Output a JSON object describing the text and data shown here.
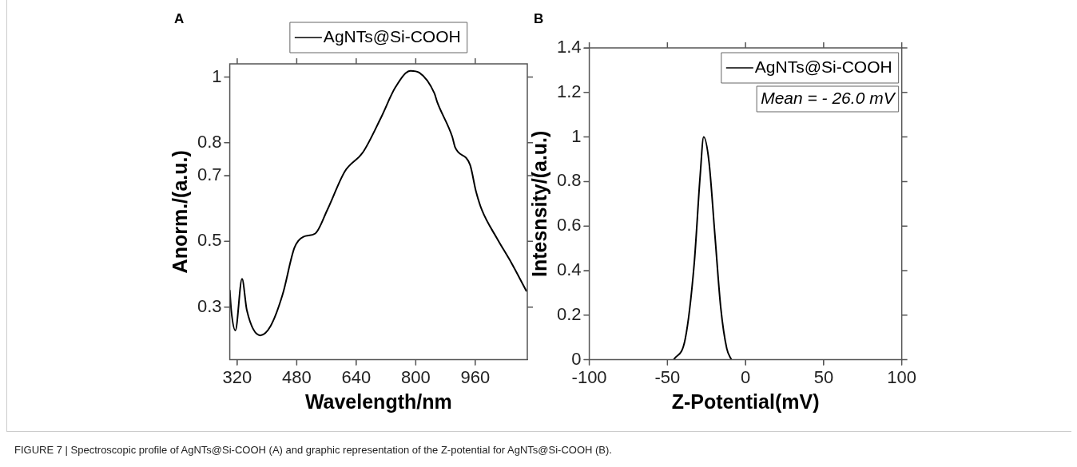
{
  "chart_data": [
    {
      "type": "line",
      "title": "A",
      "xlabel": "Wavelength/nm",
      "ylabel": "Anorm./(a.u.)",
      "x": [
        300,
        304,
        315,
        333,
        346,
        382,
        410,
        442,
        474,
        498,
        530,
        562,
        610,
        658,
        706,
        746,
        786,
        810,
        850,
        858,
        898,
        906,
        946,
        962,
        978,
        1018,
        1058,
        1098
      ],
      "series": [
        {
          "name": "AgNTs@Si-COOH",
          "color": "#000000",
          "values": [
            0.352,
            0.29,
            0.229,
            0.386,
            0.29,
            0.214,
            0.243,
            0.338,
            0.481,
            0.514,
            0.524,
            0.595,
            0.714,
            0.771,
            0.875,
            0.97,
            1.019,
            1.013,
            0.951,
            0.923,
            0.819,
            0.786,
            0.733,
            0.652,
            0.595,
            0.51,
            0.433,
            0.348
          ]
        }
      ],
      "xlim": [
        300,
        1100
      ],
      "xticks": [
        320,
        480,
        640,
        800,
        960
      ],
      "ylim": [
        0.14,
        1.04
      ],
      "yticks": [
        0.3,
        0.5,
        0.7,
        0.8,
        1
      ],
      "legend": "top",
      "marker": "none",
      "line_style": "solid",
      "grid": false,
      "annotations": [
        "FIGURE 7 | Spectroscopic profile of AgNTs@Si-COOH (A) and graphic representation of the Z-potential for AgNTs@Si-COOH (B)."
      ]
    },
    {
      "type": "line",
      "title": "B",
      "xlabel": "Z-Potential(mV)",
      "ylabel": "Intesnsity/(a.u.)",
      "x": [
        -46,
        -38.6,
        -32.9,
        -29,
        -26.8,
        -23.4,
        -19.6,
        -15.8,
        -12,
        -9
      ],
      "series": [
        {
          "name": "AgNTs@Si-COOH",
          "color": "#000000",
          "values": [
            0,
            0.093,
            0.427,
            0.83,
            1,
            0.89,
            0.56,
            0.23,
            0.05,
            0
          ]
        }
      ],
      "xlim": [
        -100,
        100
      ],
      "xticks": [
        -100,
        -50,
        0,
        50,
        100
      ],
      "ylim": [
        0,
        1.4
      ],
      "yticks": [
        0,
        0.2,
        0.4,
        0.6,
        0.8,
        1,
        1.2,
        1.4
      ],
      "legend": "top right",
      "marker": "none",
      "line_style": "solid",
      "grid": false,
      "annotations": [
        "Mean = - 26.0 mV"
      ]
    }
  ]
}
